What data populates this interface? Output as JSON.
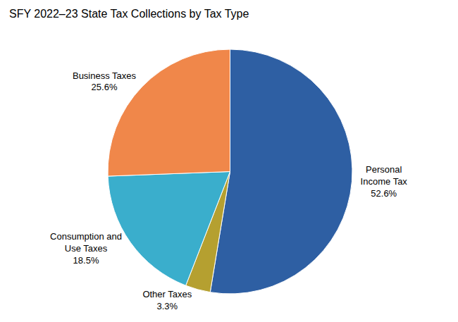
{
  "chart_data": {
    "type": "pie",
    "title": "SFY 2022–23 State Tax Collections by Tax Type",
    "categories": [
      "Personal\nIncome Tax",
      "Other Taxes",
      "Consumption and\nUse Taxes",
      "Business Taxes"
    ],
    "values": [
      52.6,
      3.3,
      18.5,
      25.6
    ],
    "value_labels": [
      "52.6%",
      "3.3%",
      "18.5%",
      "25.6%"
    ],
    "colors": [
      "#2e5fa3",
      "#b5a030",
      "#3aaecc",
      "#f0874a"
    ],
    "data_labels": true
  }
}
